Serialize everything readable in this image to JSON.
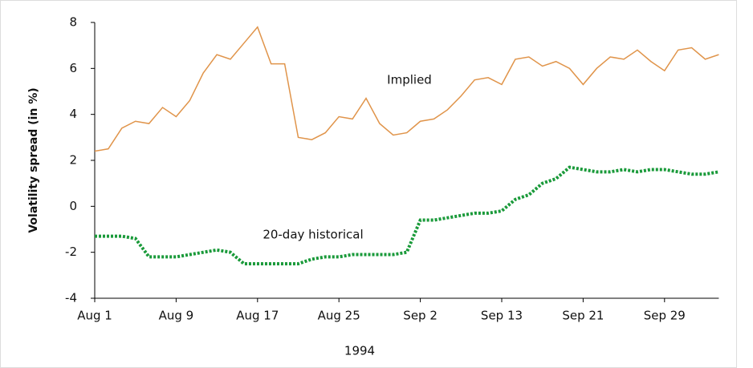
{
  "chart_data": {
    "type": "line",
    "x_label": "1994",
    "y_label": "Volatility spread (in %)",
    "categories": [
      "Aug 1",
      null,
      null,
      null,
      null,
      null,
      "Aug 9",
      null,
      null,
      null,
      null,
      null,
      "Aug 17",
      null,
      null,
      null,
      null,
      null,
      "Aug 25",
      null,
      null,
      null,
      null,
      null,
      "Sep 2",
      null,
      null,
      null,
      null,
      null,
      "Sep 13",
      null,
      null,
      null,
      null,
      null,
      "Sep 21",
      null,
      null,
      null,
      null,
      null,
      "Sep 29",
      null,
      null,
      null,
      null
    ],
    "series": [
      {
        "name": "Implied",
        "color": "#e0944a",
        "style": "solid",
        "values": [
          2.4,
          2.5,
          3.4,
          3.7,
          3.6,
          4.3,
          3.9,
          4.6,
          5.8,
          6.6,
          6.4,
          7.1,
          7.8,
          6.2,
          6.2,
          3.0,
          2.9,
          3.2,
          3.9,
          3.8,
          4.7,
          3.6,
          3.1,
          3.2,
          3.7,
          3.8,
          4.2,
          4.8,
          5.5,
          5.6,
          5.3,
          6.4,
          6.5,
          6.1,
          6.3,
          6.0,
          5.3,
          6.0,
          6.5,
          6.4,
          6.8,
          6.3,
          5.9,
          6.8,
          6.9,
          6.4,
          6.6
        ]
      },
      {
        "name": "20-day historical",
        "color": "#1a9a3a",
        "style": "dotted",
        "values": [
          -1.3,
          -1.3,
          -1.3,
          -1.4,
          -2.2,
          -2.2,
          -2.2,
          -2.1,
          -2.0,
          -1.9,
          -2.0,
          -2.5,
          -2.5,
          -2.5,
          -2.5,
          -2.5,
          -2.3,
          -2.2,
          -2.2,
          -2.1,
          -2.1,
          -2.1,
          -2.1,
          -2.0,
          -0.6,
          -0.6,
          -0.5,
          -0.4,
          -0.3,
          -0.3,
          -0.2,
          0.3,
          0.5,
          1.0,
          1.2,
          1.7,
          1.6,
          1.5,
          1.5,
          1.6,
          1.5,
          1.6,
          1.6,
          1.5,
          1.4,
          1.4,
          1.5
        ]
      }
    ],
    "ylim": [
      -4,
      8
    ],
    "yticks": [
      -4,
      -2,
      0,
      2,
      4,
      6,
      8
    ],
    "grid": false
  }
}
